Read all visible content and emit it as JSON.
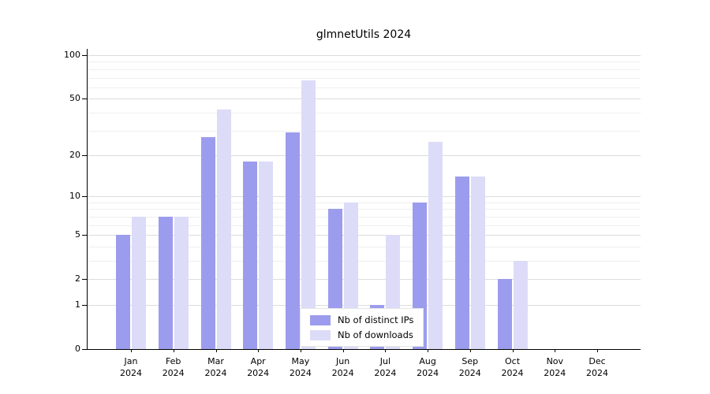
{
  "chart_data": {
    "type": "bar",
    "title": "glmnetUtils 2024",
    "scale": "log1p",
    "grid": "horizontal",
    "legend_position": "bottom-center",
    "categories": [
      "Jan",
      "Feb",
      "Mar",
      "Apr",
      "May",
      "Jun",
      "Jul",
      "Aug",
      "Sep",
      "Oct",
      "Nov",
      "Dec"
    ],
    "year_label": "2024",
    "series": [
      {
        "name": "Nb of distinct IPs",
        "color": "#9c9cee",
        "values": [
          5,
          7,
          27,
          18,
          29,
          8,
          1,
          9,
          14,
          2,
          0,
          0
        ]
      },
      {
        "name": "Nb of downloads",
        "color": "#dcdcf8",
        "values": [
          7,
          7,
          42,
          18,
          67,
          9,
          5,
          25,
          14,
          3,
          0,
          0
        ]
      }
    ],
    "y_ticks": [
      0,
      1,
      2,
      5,
      10,
      20,
      50,
      100
    ],
    "y_minor_ticks": [
      3,
      4,
      6,
      7,
      8,
      9,
      30,
      40,
      60,
      70,
      80,
      90
    ],
    "ylim": [
      0,
      110
    ],
    "xlabel": "",
    "ylabel": ""
  }
}
